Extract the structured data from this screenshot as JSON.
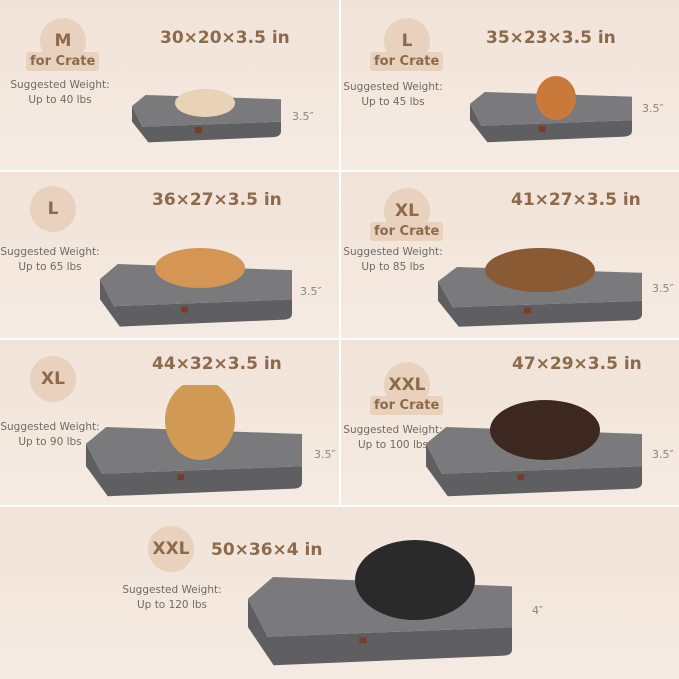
{
  "colors": {
    "background": "#f3e6dc",
    "badge": "#e8d2bd",
    "text_brown": "#8c6a4b",
    "bed_gray": "#6d6d6f"
  },
  "cells": [
    {
      "size": "M",
      "crate": "for Crate",
      "dims": "30×20×3.5 in",
      "weight_label": "Suggested Weight:",
      "weight": "Up to 40 lbs",
      "height": "3.5″",
      "dog": "french-bulldog"
    },
    {
      "size": "L",
      "crate": "for Crate",
      "dims": "35×23×3.5 in",
      "weight_label": "Suggested Weight:",
      "weight": "Up to 45 lbs",
      "height": "3.5″",
      "dog": "corgi"
    },
    {
      "size": "L",
      "crate": "",
      "dims": "36×27×3.5 in",
      "weight_label": "Suggested Weight:",
      "weight": "Up to 65 lbs",
      "height": "3.5″",
      "dog": "shiba-inu"
    },
    {
      "size": "XL",
      "crate": "for Crate",
      "dims": "41×27×3.5 in",
      "weight_label": "Suggested Weight:",
      "weight": "Up to 85 lbs",
      "height": "3.5″",
      "dog": "border-collie"
    },
    {
      "size": "XL",
      "crate": "",
      "dims": "44×32×3.5 in",
      "weight_label": "Suggested Weight:",
      "weight": "Up to 90 lbs",
      "height": "3.5″",
      "dog": "golden-retriever"
    },
    {
      "size": "XXL",
      "crate": "for Crate",
      "dims": "47×29×3.5 in",
      "weight_label": "Suggested Weight:",
      "weight": "Up to 100 lbs",
      "height": "3.5″",
      "dog": "doberman"
    },
    {
      "size": "XXL",
      "crate": "",
      "dims": "50×36×4 in",
      "weight_label": "Suggested Weight:",
      "weight": "Up to 120 lbs",
      "height": "4″",
      "dog": "alaskan-malamute"
    }
  ]
}
